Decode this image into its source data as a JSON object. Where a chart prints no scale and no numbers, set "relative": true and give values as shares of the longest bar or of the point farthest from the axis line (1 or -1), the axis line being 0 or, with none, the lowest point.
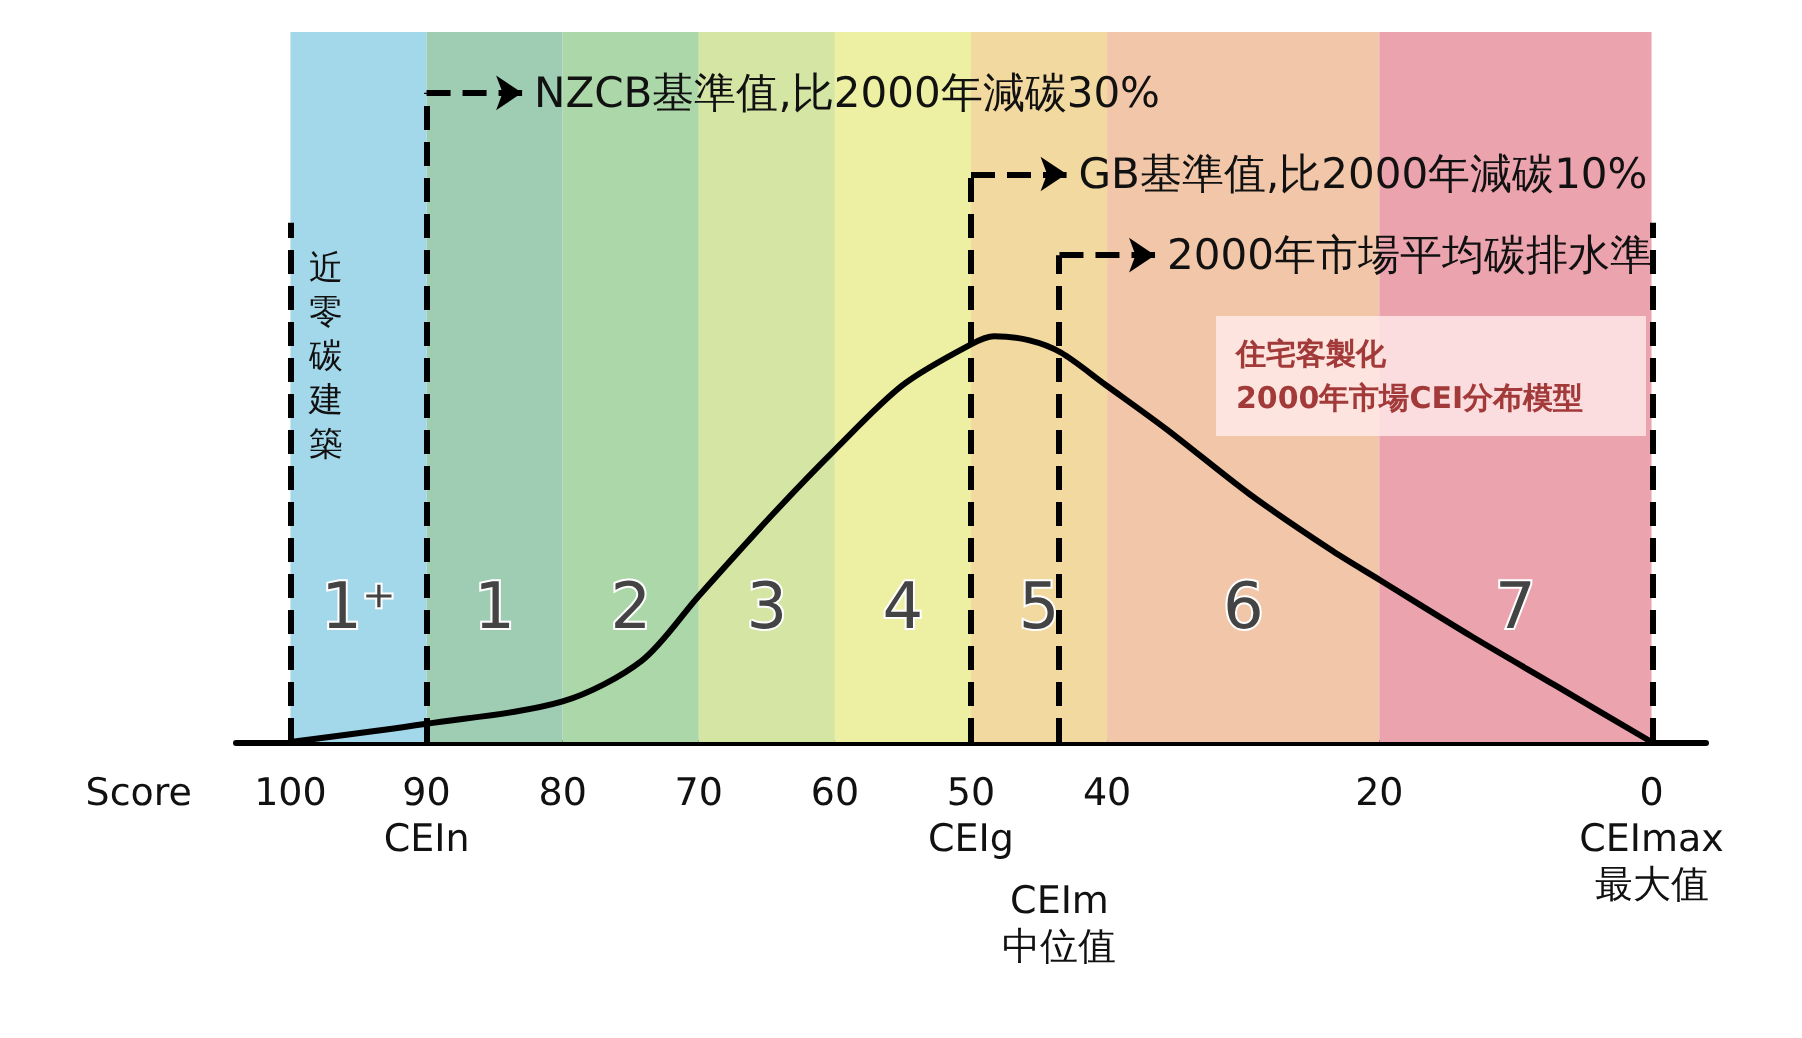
{
  "chart_data": {
    "type": "line",
    "relative": true,
    "xlabel": "Score",
    "xlim": [
      104,
      -4
    ],
    "xticks": [
      100,
      {
        "value": 90,
        "label": "90\nCEIn"
      },
      80,
      70,
      60,
      {
        "value": 50,
        "label": "50\nCEIg"
      },
      40,
      20,
      {
        "value": 0,
        "label": "0\nCEImax\n最大值"
      }
    ],
    "series": [
      {
        "color": "#000000",
        "x": [
          100,
          90,
          80,
          74.2,
          70,
          64.6,
          60,
          55,
          50,
          48.3,
          45.7,
          43.4,
          40.1,
          35.6,
          29.5,
          23.4,
          20,
          13.2,
          7.1,
          0
        ],
        "values": [
          0,
          0.045,
          0.1,
          0.2,
          0.36,
          0.56,
          0.72,
          0.88,
          0.98,
          1,
          0.99,
          0.96,
          0.88,
          0.77,
          0.61,
          0.47,
          0.4,
          0.26,
          0.14,
          0
        ]
      }
    ],
    "bands": [
      {
        "axis": "x",
        "from": 100,
        "to": 90,
        "label": "1⁺",
        "color": "#a3d7ea"
      },
      {
        "axis": "x",
        "from": 90,
        "to": 80,
        "label": "1",
        "color": "#9fcdb3"
      },
      {
        "axis": "x",
        "from": 80,
        "to": 70,
        "label": "2",
        "color": "#acd7a8"
      },
      {
        "axis": "x",
        "from": 70,
        "to": 60,
        "label": "3",
        "color": "#d4e5a4"
      },
      {
        "axis": "x",
        "from": 60,
        "to": 50,
        "label": "4",
        "color": "#edf0a2"
      },
      {
        "axis": "x",
        "from": 50,
        "to": 40,
        "label": "5",
        "color": "#f2d9a0"
      },
      {
        "axis": "x",
        "from": 40,
        "to": 20,
        "label": "6",
        "color": "#f2c6a8"
      },
      {
        "axis": "x",
        "from": 20,
        "to": 0,
        "label": "7",
        "color": "#eba3ae"
      }
    ],
    "ref_lines": [
      {
        "axis": "x",
        "value": 100,
        "label": "近零碳建築",
        "line_style": "dashed",
        "color": "#000000"
      },
      {
        "axis": "x",
        "value": 90,
        "label": "NZCB基準值,比2000年減碳30%",
        "line_style": "dashed",
        "color": "#000000"
      },
      {
        "axis": "x",
        "value": 50,
        "label": "GB基準值,比2000年減碳10%",
        "line_style": "dashed",
        "color": "#000000"
      },
      {
        "axis": "x",
        "value": 43.5,
        "label": "2000年市場平均碳排水準",
        "line_style": "dashed",
        "color": "#000000"
      },
      {
        "axis": "x",
        "value": 0,
        "label": null,
        "line_style": "dashed",
        "color": "#000000"
      }
    ],
    "annotations": [
      "住宅客製化",
      "2000年市場CEI分布模型",
      "CEIm\n中位值"
    ],
    "marker": "none",
    "line_style": "solid",
    "grid": false
  }
}
